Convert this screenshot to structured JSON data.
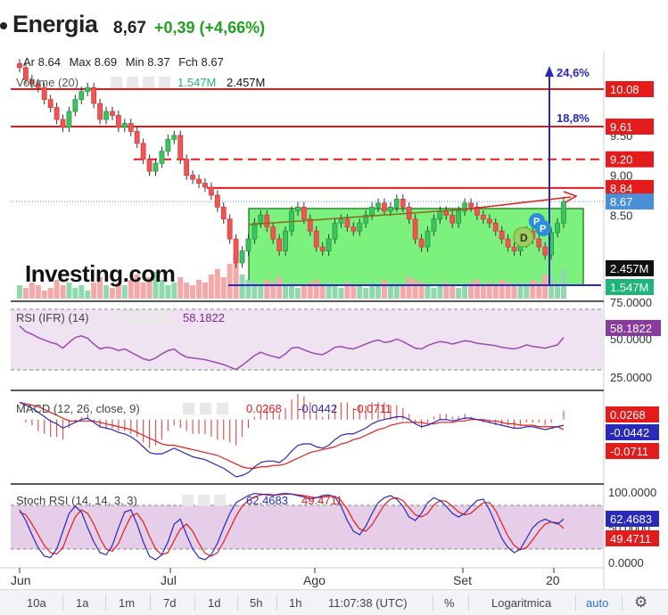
{
  "header": {
    "name": "Energia",
    "price": "8,67",
    "change": "+0,39 (+4,66%)"
  },
  "ohlc_bar": {
    "open_label": "Ar",
    "open": "8.64",
    "max_label": "Max",
    "max": "8.69",
    "min_label": "Min",
    "min": "8.37",
    "close_label": "Fch",
    "close": "8.67"
  },
  "volume_bar": {
    "label": "Volume (20)",
    "avg": "1.547M",
    "value": "2.457M"
  },
  "price_axis": {
    "ticks": [
      "9.50",
      "9.00",
      "8.50"
    ],
    "markers": [
      {
        "text": "10.08",
        "color": "#e31b1b"
      },
      {
        "text": "9.61",
        "color": "#e31b1b"
      },
      {
        "text": "9.20",
        "color": "#e31b1b"
      },
      {
        "text": "8.84",
        "color": "#e31b1b"
      },
      {
        "text": "8.67",
        "color": "#4a90d9"
      },
      {
        "text": "2.457M",
        "color": "#111111"
      },
      {
        "text": "1.547M",
        "color": "#1fb57a"
      }
    ]
  },
  "annotations": {
    "target1": "24,6%",
    "target2": "18,8%",
    "badge_d": "D",
    "badge_p": "P"
  },
  "watermark": "Investing.com",
  "rsi": {
    "label": "RSI (IFR) (14)",
    "value": "58.1822",
    "ticks": [
      "75.0000",
      "50.0000",
      "25.0000"
    ],
    "marker": "58.1822",
    "color": "#7a2a8c"
  },
  "macd": {
    "label": "MACD (12, 26, close, 9)",
    "v1": "0.0268",
    "v2": "-0.0442",
    "v3": "-0.0711",
    "m1": "0.0268",
    "m2": "-0.0442",
    "m3": "-0.0711"
  },
  "stoch": {
    "label": "Stoch RSI (14, 14, 3, 3)",
    "v1": "62.4683",
    "v2": "49.4711",
    "ticks": [
      "100.0000",
      "50.0000",
      "0.0000"
    ],
    "m1": "62.4683",
    "m2": "49.4711"
  },
  "x_axis": {
    "labels": [
      "Jun",
      "Jul",
      "Ago",
      "Set",
      "20"
    ]
  },
  "bottom_bar": {
    "buttons": [
      "10a",
      "1a",
      "1m",
      "7d",
      "1d",
      "5h",
      "1h"
    ],
    "time": "11:07:38 (UTC)",
    "percent": "%",
    "log": "Logaritmica",
    "auto": "auto"
  },
  "chart_data": {
    "type": "candlestick",
    "price_range": [
      7.62,
      10.55
    ],
    "levels": [
      10.08,
      9.61,
      9.2,
      8.84
    ],
    "last_price": 8.67,
    "closes": [
      10.35,
      10.2,
      10.15,
      10.1,
      9.95,
      9.85,
      9.7,
      9.6,
      9.8,
      9.95,
      10.05,
      10.1,
      9.9,
      9.7,
      9.8,
      9.75,
      9.6,
      9.65,
      9.55,
      9.4,
      9.2,
      9.05,
      9.15,
      9.3,
      9.45,
      9.5,
      9.2,
      9.0,
      8.95,
      8.9,
      8.85,
      8.75,
      8.6,
      8.45,
      8.2,
      7.9,
      8.05,
      8.2,
      8.4,
      8.5,
      8.35,
      8.2,
      8.05,
      8.3,
      8.55,
      8.6,
      8.45,
      8.3,
      8.1,
      8.05,
      8.2,
      8.4,
      8.45,
      8.35,
      8.3,
      8.4,
      8.5,
      8.6,
      8.65,
      8.55,
      8.6,
      8.7,
      8.6,
      8.45,
      8.2,
      8.1,
      8.3,
      8.45,
      8.55,
      8.5,
      8.4,
      8.55,
      8.65,
      8.6,
      8.5,
      8.45,
      8.4,
      8.3,
      8.2,
      8.1,
      8.05,
      8.15,
      8.3,
      8.2,
      8.1,
      8.0,
      8.28,
      8.4,
      8.67
    ],
    "rsi": {
      "range": [
        0,
        100
      ],
      "levels": [
        70,
        30
      ],
      "values": [
        72,
        65,
        62,
        58,
        55,
        52,
        50,
        45,
        52,
        58,
        60,
        57,
        50,
        44,
        46,
        45,
        42,
        44,
        40,
        36,
        32,
        30,
        33,
        38,
        42,
        44,
        38,
        34,
        33,
        32,
        31,
        29,
        27,
        25,
        22,
        19,
        24,
        30,
        36,
        40,
        37,
        35,
        33,
        38,
        45,
        46,
        43,
        40,
        38,
        37,
        41,
        46,
        47,
        45,
        44,
        47,
        50,
        53,
        55,
        52,
        53,
        56,
        53,
        49,
        45,
        44,
        48,
        51,
        53,
        52,
        50,
        52,
        54,
        53,
        51,
        50,
        49,
        48,
        46,
        45,
        44,
        46,
        49,
        47,
        46,
        45,
        47,
        49,
        58
      ]
    },
    "macd": {
      "range": [
        -0.4,
        0.16
      ],
      "macd": [
        0.12,
        0.1,
        0.08,
        0.05,
        0.02,
        -0.01,
        -0.03,
        -0.06,
        -0.04,
        -0.02,
        0.0,
        0.01,
        -0.02,
        -0.05,
        -0.06,
        -0.07,
        -0.09,
        -0.1,
        -0.12,
        -0.15,
        -0.19,
        -0.23,
        -0.24,
        -0.24,
        -0.22,
        -0.2,
        -0.22,
        -0.24,
        -0.26,
        -0.27,
        -0.28,
        -0.3,
        -0.32,
        -0.34,
        -0.37,
        -0.4,
        -0.39,
        -0.37,
        -0.33,
        -0.3,
        -0.29,
        -0.29,
        -0.3,
        -0.27,
        -0.22,
        -0.18,
        -0.17,
        -0.17,
        -0.19,
        -0.2,
        -0.18,
        -0.14,
        -0.11,
        -0.1,
        -0.1,
        -0.08,
        -0.06,
        -0.03,
        -0.01,
        0.0,
        0.01,
        0.02,
        0.02,
        0.0,
        -0.03,
        -0.05,
        -0.04,
        -0.02,
        0.0,
        0.0,
        -0.01,
        0.0,
        0.01,
        0.01,
        0.0,
        -0.01,
        -0.02,
        -0.03,
        -0.04,
        -0.05,
        -0.06,
        -0.06,
        -0.05,
        -0.05,
        -0.06,
        -0.07,
        -0.06,
        -0.05,
        -0.04
      ],
      "signal": [
        0.12,
        0.11,
        0.1,
        0.09,
        0.07,
        0.05,
        0.03,
        0.01,
        -0.01,
        -0.01,
        -0.01,
        -0.01,
        -0.01,
        -0.02,
        -0.03,
        -0.04,
        -0.05,
        -0.06,
        -0.07,
        -0.09,
        -0.11,
        -0.13,
        -0.15,
        -0.17,
        -0.18,
        -0.18,
        -0.19,
        -0.2,
        -0.21,
        -0.22,
        -0.23,
        -0.24,
        -0.25,
        -0.27,
        -0.29,
        -0.31,
        -0.33,
        -0.34,
        -0.34,
        -0.33,
        -0.33,
        -0.32,
        -0.32,
        -0.31,
        -0.29,
        -0.27,
        -0.25,
        -0.23,
        -0.22,
        -0.21,
        -0.2,
        -0.19,
        -0.17,
        -0.16,
        -0.14,
        -0.13,
        -0.11,
        -0.09,
        -0.07,
        -0.06,
        -0.04,
        -0.03,
        -0.02,
        -0.02,
        -0.02,
        -0.02,
        -0.03,
        -0.03,
        -0.02,
        -0.02,
        -0.02,
        -0.01,
        -0.01,
        0.0,
        0.0,
        0.0,
        -0.01,
        -0.01,
        -0.02,
        -0.03,
        -0.03,
        -0.04,
        -0.04,
        -0.04,
        -0.05,
        -0.05,
        -0.05,
        -0.05,
        -0.07
      ]
    },
    "stoch": {
      "range": [
        0,
        100
      ],
      "levels": [
        80,
        20
      ],
      "k": [
        75,
        60,
        40,
        22,
        10,
        8,
        20,
        45,
        70,
        80,
        72,
        50,
        30,
        15,
        12,
        25,
        50,
        72,
        75,
        55,
        30,
        10,
        5,
        12,
        30,
        55,
        62,
        40,
        20,
        8,
        5,
        12,
        28,
        50,
        70,
        85,
        90,
        95,
        98,
        97,
        96,
        95,
        97,
        98,
        97,
        95,
        93,
        90,
        92,
        95,
        96,
        93,
        80,
        60,
        45,
        40,
        52,
        70,
        85,
        92,
        95,
        90,
        80,
        65,
        60,
        70,
        85,
        92,
        88,
        80,
        70,
        65,
        70,
        80,
        88,
        90,
        75,
        55,
        35,
        22,
        15,
        20,
        35,
        50,
        58,
        62,
        58,
        55,
        62
      ],
      "d": [
        72,
        68,
        55,
        40,
        25,
        15,
        13,
        22,
        45,
        65,
        75,
        70,
        55,
        35,
        20,
        17,
        28,
        48,
        66,
        70,
        58,
        38,
        20,
        12,
        15,
        32,
        48,
        55,
        45,
        28,
        14,
        10,
        15,
        30,
        48,
        66,
        80,
        88,
        93,
        96,
        97,
        96,
        96,
        97,
        97,
        96,
        95,
        93,
        92,
        93,
        94,
        94,
        88,
        76,
        60,
        48,
        45,
        54,
        68,
        82,
        90,
        92,
        88,
        78,
        68,
        65,
        70,
        82,
        88,
        87,
        80,
        72,
        68,
        70,
        78,
        85,
        85,
        74,
        56,
        38,
        25,
        19,
        22,
        33,
        45,
        55,
        58,
        57,
        49
      ]
    },
    "volume": {
      "values": [
        0.5,
        0.4,
        0.6,
        0.5,
        0.3,
        0.4,
        0.7,
        0.5,
        0.6,
        0.4,
        0.5,
        0.3,
        0.6,
        0.8,
        0.5,
        0.4,
        0.6,
        0.5,
        0.7,
        0.9,
        0.6,
        0.8,
        1.0,
        0.7,
        0.5,
        0.6,
        0.8,
        0.6,
        0.5,
        0.7,
        0.6,
        0.9,
        1.1,
        0.8,
        1.3,
        1.7,
        0.9,
        0.7,
        0.6,
        0.5,
        0.7,
        0.6,
        0.8,
        0.5,
        0.6,
        0.4,
        0.5,
        0.6,
        0.7,
        0.5,
        0.6,
        0.5,
        0.4,
        0.6,
        0.5,
        0.5,
        0.4,
        0.6,
        0.5,
        0.7,
        0.5,
        0.6,
        0.5,
        0.8,
        0.7,
        0.6,
        0.5,
        0.4,
        0.5,
        0.6,
        0.5,
        0.4,
        0.5,
        0.6,
        0.7,
        0.5,
        0.6,
        0.5,
        0.7,
        0.6,
        0.5,
        0.6,
        0.5,
        0.7,
        0.6,
        0.9,
        0.8,
        0.6,
        1.1
      ],
      "max": 2.5
    }
  }
}
